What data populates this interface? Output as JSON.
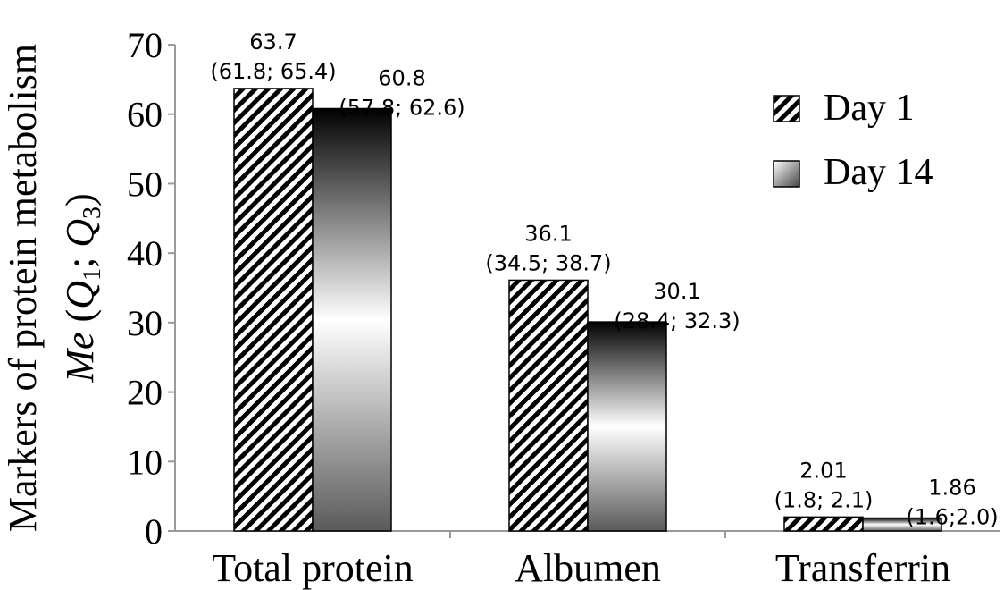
{
  "chart_data": {
    "type": "bar",
    "title": "",
    "ylabel_line1": "Markers of protein metabolism",
    "ylabel_line2": {
      "me": "Me",
      "open": " (",
      "q1": "Q",
      "sub1": "1",
      "sep": "; ",
      "q3": "Q",
      "sub3": "3",
      "close": ")"
    },
    "xlabel": "",
    "ylim": [
      0,
      70
    ],
    "yticks": [
      0,
      10,
      20,
      30,
      40,
      50,
      60,
      70
    ],
    "categories": [
      "Total protein",
      "Albumen",
      "Transferrin"
    ],
    "series": [
      {
        "name": "Day 1",
        "pattern": "hatched",
        "values": [
          63.7,
          36.1,
          2.01
        ],
        "labels": [
          "63.7",
          "36.1",
          "2.01"
        ],
        "quartiles": [
          "(61.8; 65.4)",
          "(34.5; 38.7)",
          "(1.8; 2.1)"
        ]
      },
      {
        "name": "Day 14",
        "pattern": "gradient",
        "values": [
          60.8,
          30.1,
          1.86
        ],
        "labels": [
          "60.8",
          "30.1",
          "1.86"
        ],
        "quartiles": [
          "(57.8; 62.6)",
          "(28.4; 32.3)",
          "(1.6;2.0)"
        ]
      }
    ],
    "legend_position": "top-right",
    "grid": false
  },
  "colors": {
    "axis": "#9a9a9a",
    "text": "#000000",
    "gradient_dark": "#000000",
    "gradient_light": "#ffffff"
  }
}
